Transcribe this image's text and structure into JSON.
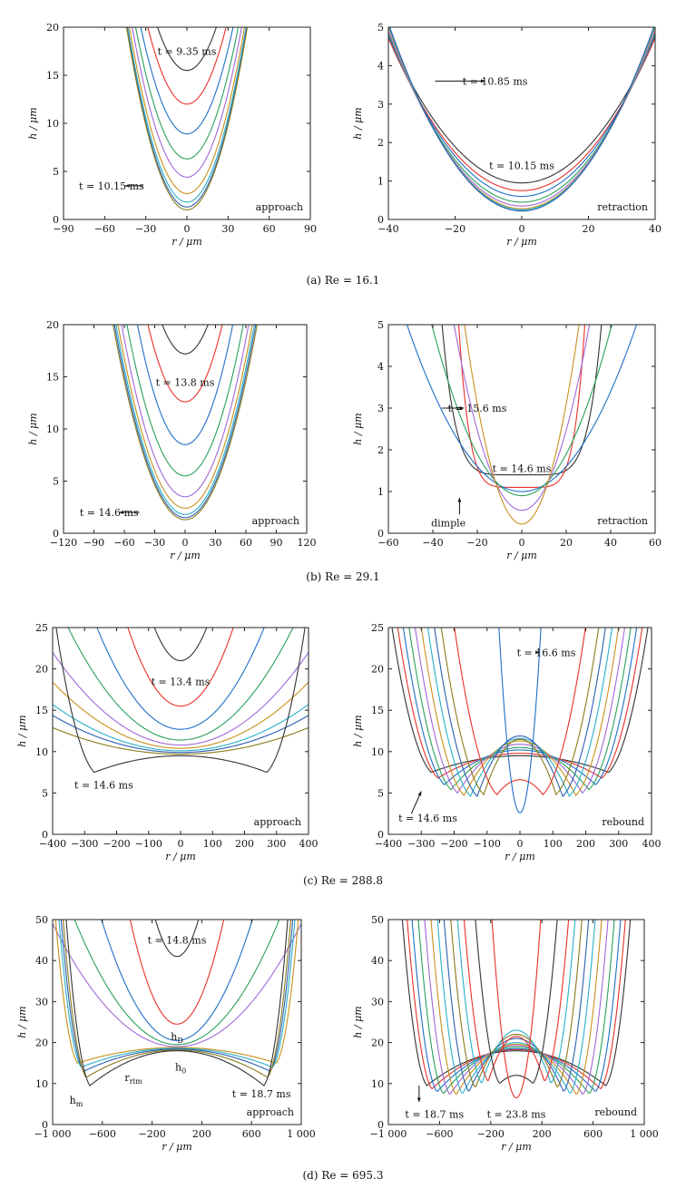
{
  "figure": {
    "captions": [
      "(a) Re = 16.1",
      "(b) Re = 29.1",
      "(c) Re = 288.8",
      "(d) Re = 695.3"
    ]
  },
  "chart_data": [
    {
      "id": "a-approach",
      "type": "line",
      "mode": "approach",
      "xlabel": "r / μm",
      "ylabel": "h / μm",
      "xlim": [
        -90,
        90
      ],
      "ylim": [
        0,
        20
      ],
      "xticks": [
        -90,
        -60,
        -30,
        0,
        30,
        60,
        90
      ],
      "xtick_labels": [
        "−90",
        "−60",
        "−30",
        "0",
        "30",
        "60",
        "90"
      ],
      "yticks": [
        0,
        5,
        10,
        15,
        20
      ],
      "ytick_labels": [
        "0",
        "5",
        "10",
        "15",
        "20"
      ],
      "phase_label": "approach",
      "annotations": [
        {
          "text": "t = 10.15 ms",
          "x": -55,
          "y": 3.5,
          "arrow_to": [
            -45,
            3.5
          ],
          "arrow_from": [
            -32,
            3.5
          ]
        },
        {
          "text": "t = 9.35 ms",
          "x": 0,
          "y": 17.5
        }
      ],
      "series": [
        {
          "color": "#333333",
          "h0": 15.5,
          "a": 0.0098
        },
        {
          "color": "#e8302a",
          "h0": 12.0,
          "a": 0.0098
        },
        {
          "color": "#1f6fc5",
          "h0": 8.9,
          "a": 0.0098
        },
        {
          "color": "#2aa05a",
          "h0": 6.3,
          "a": 0.0098
        },
        {
          "color": "#a068d8",
          "h0": 4.4,
          "a": 0.0098
        },
        {
          "color": "#c8901a",
          "h0": 2.7,
          "a": 0.0098
        },
        {
          "color": "#28b0c8",
          "h0": 1.8,
          "a": 0.0098
        },
        {
          "color": "#2c5fb0",
          "h0": 1.3,
          "a": 0.0098
        },
        {
          "color": "#8a7a1a",
          "h0": 1.0,
          "a": 0.0098
        }
      ]
    },
    {
      "id": "a-retraction",
      "type": "line",
      "mode": "retraction",
      "xlabel": "r / μm",
      "ylabel": "h / μm",
      "xlim": [
        -40,
        40
      ],
      "ylim": [
        0,
        5
      ],
      "xticks": [
        -40,
        -20,
        0,
        20,
        40
      ],
      "xtick_labels": [
        "−40",
        "−20",
        "0",
        "20",
        "40"
      ],
      "yticks": [
        0,
        1,
        2,
        3,
        4,
        5
      ],
      "ytick_labels": [
        "0",
        "1",
        "2",
        "3",
        "4",
        "5"
      ],
      "phase_label": "retraction",
      "annotations": [
        {
          "text": "t = 10.85 ms",
          "x": -8,
          "y": 3.6,
          "arrow_to": [
            -11,
            3.6
          ],
          "arrow_from": [
            -26,
            3.6
          ]
        },
        {
          "text": "t = 10.15 ms",
          "x": 0,
          "y": 1.4
        }
      ],
      "series": [
        {
          "color": "#333333",
          "h0": 0.95,
          "a": 0.00236
        },
        {
          "color": "#e8302a",
          "h0": 0.75,
          "a": 0.00248
        },
        {
          "color": "#1f6fc5",
          "h0": 0.6,
          "a": 0.00262
        },
        {
          "color": "#2aa05a",
          "h0": 0.45,
          "a": 0.00275
        },
        {
          "color": "#a068d8",
          "h0": 0.35,
          "a": 0.00285
        },
        {
          "color": "#c8901a",
          "h0": 0.28,
          "a": 0.00295
        },
        {
          "color": "#28b0c8",
          "h0": 0.25,
          "a": 0.003
        },
        {
          "color": "#2c5fb0",
          "h0": 0.22,
          "a": 0.00305
        }
      ]
    },
    {
      "id": "b-approach",
      "type": "line",
      "mode": "approach",
      "xlabel": "r / μm",
      "ylabel": "h / μm",
      "xlim": [
        -120,
        120
      ],
      "ylim": [
        0,
        20
      ],
      "xticks": [
        -120,
        -90,
        -60,
        -30,
        0,
        30,
        60,
        90,
        120
      ],
      "xtick_labels": [
        "−120",
        "−90",
        "−60",
        "−30",
        "0",
        "30",
        "60",
        "90",
        "120"
      ],
      "yticks": [
        0,
        5,
        10,
        15,
        20
      ],
      "ytick_labels": [
        "0",
        "5",
        "10",
        "15",
        "20"
      ],
      "phase_label": "approach",
      "annotations": [
        {
          "text": "t = 14.6 ms",
          "x": -75,
          "y": 2.0,
          "arrow_to": [
            -65,
            2.0
          ],
          "arrow_from": [
            -45,
            2.0
          ]
        },
        {
          "text": "t = 13.8 ms",
          "x": 0,
          "y": 14.5
        }
      ],
      "series": [
        {
          "color": "#333333",
          "h0": 17.2,
          "a": 0.0055
        },
        {
          "color": "#e8302a",
          "h0": 12.6,
          "a": 0.0055
        },
        {
          "color": "#1f6fc5",
          "h0": 8.5,
          "a": 0.0052
        },
        {
          "color": "#2aa05a",
          "h0": 5.5,
          "a": 0.0044
        },
        {
          "color": "#a068d8",
          "h0": 3.5,
          "a": 0.0042
        },
        {
          "color": "#c8901a",
          "h0": 2.4,
          "a": 0.004
        },
        {
          "color": "#28b0c8",
          "h0": 1.8,
          "a": 0.0039
        },
        {
          "color": "#2c5fb0",
          "h0": 1.5,
          "a": 0.0038
        },
        {
          "color": "#8a7a1a",
          "h0": 1.3,
          "a": 0.0037
        }
      ]
    },
    {
      "id": "b-retraction",
      "type": "line",
      "mode": "retraction",
      "xlabel": "r / μm",
      "ylabel": "h / μm",
      "xlim": [
        -60,
        60
      ],
      "ylim": [
        0,
        5
      ],
      "xticks": [
        -60,
        -40,
        -20,
        0,
        20,
        40,
        60
      ],
      "xtick_labels": [
        "−60",
        "−40",
        "−20",
        "0",
        "20",
        "40",
        "60"
      ],
      "yticks": [
        0,
        1,
        2,
        3,
        4,
        5
      ],
      "ytick_labels": [
        "0",
        "1",
        "2",
        "3",
        "4",
        "5"
      ],
      "phase_label": "retraction",
      "annotations": [
        {
          "text": "t = 15.6 ms",
          "x": -20,
          "y": 3.0,
          "arrow_to": [
            -26,
            3.0
          ],
          "arrow_from": [
            -36,
            3.0
          ]
        },
        {
          "text": "t = 14.6 ms",
          "x": 0,
          "y": 1.55
        },
        {
          "text": "dimple",
          "x": -33,
          "y": 0.25,
          "arrow_to": [
            -28,
            0.85
          ],
          "arrow_from": [
            -28,
            0.45
          ]
        }
      ],
      "series": [
        {
          "color": "#333333",
          "h0": 1.4,
          "a": 1.7e-09,
          "n": 6
        },
        {
          "color": "#e8302a",
          "h0": 1.1,
          "a": 7.5e-09,
          "n": 6
        },
        {
          "color": "#1f6fc5",
          "h0": 1.0,
          "dimple": 0.35,
          "w": 22,
          "a": 0.0015
        },
        {
          "color": "#2aa05a",
          "h0": 0.9,
          "dimple": 0.3,
          "w": 18,
          "a": 0.0025
        },
        {
          "color": "#a068d8",
          "h0": 0.55,
          "a": 0.0048
        },
        {
          "color": "#c8901a",
          "h0": 0.22,
          "a": 0.0072
        }
      ]
    },
    {
      "id": "c-approach",
      "type": "line",
      "mode": "approach",
      "xlabel": "r / μm",
      "ylabel": "h / μm",
      "xlim": [
        -400,
        400
      ],
      "ylim": [
        0,
        25
      ],
      "xticks": [
        -400,
        -300,
        -200,
        -100,
        0,
        100,
        200,
        300,
        400
      ],
      "xtick_labels": [
        "−400",
        "−300",
        "−200",
        "−100",
        "0",
        "100",
        "200",
        "300",
        "400"
      ],
      "yticks": [
        0,
        5,
        10,
        15,
        20,
        25
      ],
      "ytick_labels": [
        "0",
        "5",
        "10",
        "15",
        "20",
        "25"
      ],
      "phase_label": "approach",
      "annotations": [
        {
          "text": "t = 14.6 ms",
          "x": -240,
          "y": 6.0
        },
        {
          "text": "t = 13.4 ms",
          "x": 0,
          "y": 18.5
        }
      ],
      "series": [
        {
          "color": "#333333",
          "h0": 21.0,
          "a": 0.0006
        },
        {
          "color": "#e8302a",
          "h0": 15.5,
          "a": 0.00035
        },
        {
          "color": "#1f6fc5",
          "h0": 12.7,
          "a": 0.00018
        },
        {
          "color": "#2aa05a",
          "h0": 11.4,
          "a": 0.00011
        },
        {
          "color": "#a068d8",
          "h0": 10.8,
          "a": 7e-05
        },
        {
          "color": "#c8901a",
          "h0": 10.4,
          "a": 5e-05
        },
        {
          "color": "#28b0c8",
          "h0": 10.1,
          "a": 3.5e-05
        },
        {
          "color": "#2c5fb0",
          "h0": 9.9,
          "a": 2.8e-05
        },
        {
          "color": "#8a7a1a",
          "h0": 9.7,
          "a": 2e-05
        },
        {
          "color": "#333333",
          "h0": 9.5,
          "rim": 7.5,
          "rr": 270
        }
      ]
    },
    {
      "id": "c-rebound",
      "type": "line",
      "mode": "rebound",
      "xlabel": "r / μm",
      "ylabel": "h / μm",
      "xlim": [
        -400,
        400
      ],
      "ylim": [
        0,
        25
      ],
      "xticks": [
        -400,
        -300,
        -200,
        -100,
        0,
        100,
        200,
        300,
        400
      ],
      "xtick_labels": [
        "−400",
        "−300",
        "−200",
        "−100",
        "0",
        "100",
        "200",
        "300",
        "400"
      ],
      "yticks": [
        0,
        5,
        10,
        15,
        20,
        25
      ],
      "ytick_labels": [
        "0",
        "5",
        "10",
        "15",
        "20",
        "25"
      ],
      "phase_label": "rebound",
      "annotations": [
        {
          "text": "t = 16.6 ms",
          "x": 80,
          "y": 22.0,
          "arrow_to": [
            60,
            22.0
          ],
          "arrow_from": [
            48,
            22.0
          ]
        },
        {
          "text": "t = 14.6 ms",
          "x": -280,
          "y": 2.0,
          "arrow_to": [
            -300,
            5.2
          ],
          "arrow_from": [
            -330,
            2.5
          ]
        }
      ],
      "series": [
        {
          "color": "#333333",
          "h0": 9.5,
          "rim": 7.5,
          "rr": 270
        },
        {
          "color": "#e8302a",
          "h0": 9.8,
          "rim": 6.8,
          "rr": 250
        },
        {
          "color": "#1f6fc5",
          "h0": 10.2,
          "rim": 6.0,
          "rr": 230
        },
        {
          "color": "#2aa05a",
          "h0": 10.5,
          "rim": 5.4,
          "rr": 210
        },
        {
          "color": "#a068d8",
          "h0": 10.9,
          "rim": 5.0,
          "rr": 190
        },
        {
          "color": "#c8901a",
          "h0": 11.3,
          "rim": 4.7,
          "rr": 170
        },
        {
          "color": "#28b0c8",
          "h0": 11.6,
          "rim": 4.6,
          "rr": 150
        },
        {
          "color": "#2c5fb0",
          "h0": 11.9,
          "rim": 4.6,
          "rr": 130
        },
        {
          "color": "#8a7a1a",
          "h0": 11.5,
          "rim": 4.8,
          "rr": 110
        },
        {
          "color": "#e8302a",
          "h0": 6.6,
          "rim": 4.8,
          "rr": 70
        },
        {
          "color": "#1f6fc5",
          "h0": 2.6,
          "a": 0.0055
        }
      ]
    },
    {
      "id": "d-approach",
      "type": "line",
      "mode": "approach",
      "xlabel": "r / μm",
      "ylabel": "h / μm",
      "xlim": [
        -1000,
        1000
      ],
      "ylim": [
        0,
        50
      ],
      "xticks": [
        -1000,
        -600,
        -200,
        200,
        600,
        1000
      ],
      "xtick_labels": [
        "−1 000",
        "−600",
        "−200",
        "200",
        "600",
        "1 000"
      ],
      "yticks": [
        0,
        10,
        20,
        30,
        40,
        50
      ],
      "ytick_labels": [
        "0",
        "10",
        "20",
        "30",
        "40",
        "50"
      ],
      "phase_label": "approach",
      "annotations": [
        {
          "text": "t = 14.8 ms",
          "x": 0,
          "y": 45
        },
        {
          "text": "h",
          "sub": "D",
          "x": 0,
          "y": 21.5
        },
        {
          "text": "r",
          "sub": "rim",
          "x": -350,
          "y": 11.5
        },
        {
          "text": "h",
          "sub": "0",
          "x": 30,
          "y": 14
        },
        {
          "text": "h",
          "sub": "m",
          "x": -810,
          "y": 6
        },
        {
          "text": "t = 18.7 ms",
          "x": 680,
          "y": 7.5
        }
      ],
      "series": [
        {
          "color": "#333333",
          "h0": 41,
          "a": 0.0003
        },
        {
          "color": "#e8302a",
          "h0": 24.5,
          "a": 0.00018
        },
        {
          "color": "#1f6fc5",
          "h0": 20.5,
          "a": 8e-05
        },
        {
          "color": "#2aa05a",
          "h0": 19.5,
          "a": 4.5e-05
        },
        {
          "color": "#a068d8",
          "h0": 19.0,
          "a": 3e-05
        },
        {
          "color": "#c8901a",
          "h0": 18.8,
          "rim": 15,
          "rr": 800
        },
        {
          "color": "#28b0c8",
          "h0": 18.6,
          "rim": 14,
          "rr": 770
        },
        {
          "color": "#2c5fb0",
          "h0": 18.4,
          "rim": 13,
          "rr": 750
        },
        {
          "color": "#8a7a1a",
          "h0": 18.2,
          "rim": 11.5,
          "rr": 730
        },
        {
          "color": "#333333",
          "h0": 18.0,
          "rim": 9.5,
          "rr": 700
        }
      ]
    },
    {
      "id": "d-rebound",
      "type": "line",
      "mode": "rebound",
      "xlabel": "r / μm",
      "ylabel": "h / μm",
      "xlim": [
        -1000,
        1000
      ],
      "ylim": [
        0,
        50
      ],
      "xticks": [
        -1000,
        -600,
        -200,
        200,
        600,
        1000
      ],
      "xtick_labels": [
        "−1 000",
        "−600",
        "−200",
        "200",
        "600",
        "1 000"
      ],
      "yticks": [
        0,
        10,
        20,
        30,
        40,
        50
      ],
      "ytick_labels": [
        "0",
        "10",
        "20",
        "30",
        "40",
        "50"
      ],
      "phase_label": "rebound",
      "annotations": [
        {
          "text": "t = 18.7 ms",
          "x": -640,
          "y": 2.5,
          "arrow_to": [
            -760,
            5.5
          ],
          "arrow_from": [
            -760,
            9.5
          ]
        },
        {
          "text": "t = 23.8 ms",
          "x": 0,
          "y": 2.5
        }
      ],
      "series": [
        {
          "color": "#333333",
          "h0": 18.0,
          "rim": 9.5,
          "rr": 700
        },
        {
          "color": "#e8302a",
          "h0": 18.3,
          "rim": 8.7,
          "rr": 660
        },
        {
          "color": "#1f6fc5",
          "h0": 18.5,
          "rim": 8.0,
          "rr": 620
        },
        {
          "color": "#2aa05a",
          "h0": 18.9,
          "rim": 7.5,
          "rr": 570
        },
        {
          "color": "#a068d8",
          "h0": 19.3,
          "rim": 7.3,
          "rr": 520
        },
        {
          "color": "#c8901a",
          "h0": 19.6,
          "rim": 7.3,
          "rr": 470
        },
        {
          "color": "#28b0c8",
          "h0": 20.0,
          "rim": 7.5,
          "rr": 420
        },
        {
          "color": "#2c5fb0",
          "h0": 21.0,
          "rim": 8.0,
          "rr": 370
        },
        {
          "color": "#8a7a1a",
          "h0": 22.0,
          "rim": 9.0,
          "rr": 320
        },
        {
          "color": "#28b0c8",
          "h0": 23.0,
          "rim": 10.0,
          "rr": 270
        },
        {
          "color": "#e8302a",
          "h0": 21.5,
          "rim": 10.5,
          "rr": 220
        },
        {
          "color": "#333333",
          "h0": 12.0,
          "rim": 10.0,
          "rr": 130
        },
        {
          "color": "#e8302a",
          "h0": 6.5,
          "a": 0.0012
        }
      ]
    }
  ]
}
